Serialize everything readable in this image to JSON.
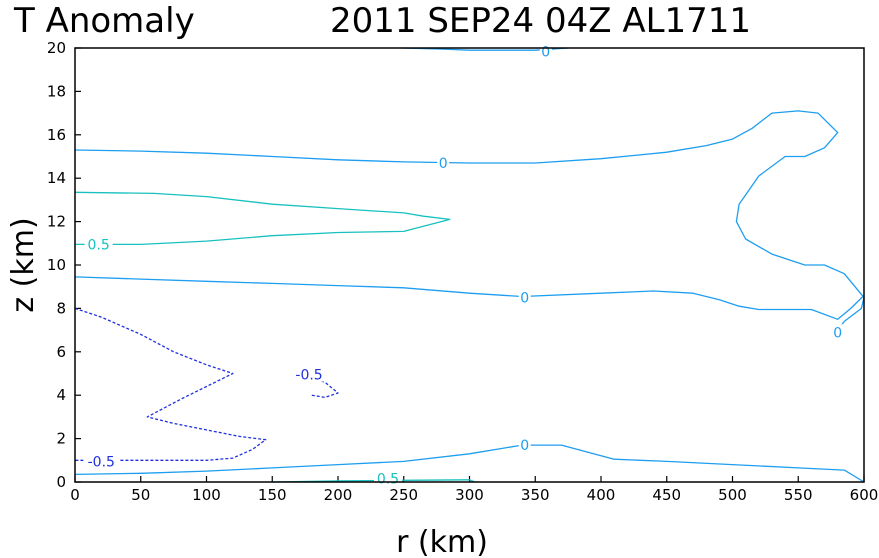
{
  "title_left": "T Anomaly",
  "title_right": "2011 SEP24 04Z  AL1711",
  "chart_data": {
    "type": "contour",
    "xlabel": "r (km)",
    "ylabel": "z (km)",
    "xlim": [
      0,
      600
    ],
    "ylim": [
      0,
      20
    ],
    "xticks": [
      0,
      50,
      100,
      150,
      200,
      250,
      300,
      350,
      400,
      450,
      500,
      550,
      600
    ],
    "yticks": [
      0,
      2,
      4,
      6,
      8,
      10,
      12,
      14,
      16,
      18,
      20
    ],
    "colors": {
      "zero": "#1e9ef0",
      "positive": "#18c0c0",
      "negative": "#2030e0"
    },
    "contours": [
      {
        "level": "0",
        "style": "solid",
        "color": "zero",
        "points": [
          [
            248,
            20
          ],
          [
            280,
            19.95
          ],
          [
            300,
            19.9
          ],
          [
            350,
            19.9
          ],
          [
            375,
            20
          ]
        ],
        "labels": [
          {
            "text": "0",
            "at": [
              358,
              19.85
            ]
          }
        ]
      },
      {
        "level": "0",
        "style": "solid",
        "color": "zero",
        "points": [
          [
            0,
            15.3
          ],
          [
            50,
            15.25
          ],
          [
            100,
            15.15
          ],
          [
            150,
            15
          ],
          [
            200,
            14.85
          ],
          [
            250,
            14.75
          ],
          [
            300,
            14.7
          ],
          [
            350,
            14.7
          ],
          [
            400,
            14.9
          ],
          [
            450,
            15.2
          ],
          [
            480,
            15.5
          ],
          [
            500,
            15.8
          ],
          [
            515,
            16.3
          ],
          [
            530,
            17
          ],
          [
            550,
            17.1
          ],
          [
            565,
            17
          ],
          [
            580,
            16.1
          ],
          [
            570,
            15.4
          ],
          [
            555,
            15
          ],
          [
            540,
            15
          ],
          [
            520,
            14.1
          ],
          [
            505,
            12.8
          ],
          [
            503,
            12
          ],
          [
            510,
            11.2
          ],
          [
            530,
            10.5
          ],
          [
            555,
            10
          ],
          [
            570,
            10
          ],
          [
            585,
            9.6
          ],
          [
            600,
            8.5
          ],
          [
            598,
            8
          ],
          [
            585,
            7.4
          ],
          [
            580,
            7
          ]
        ],
        "labels": [
          {
            "text": "0",
            "at": [
              280,
              14.7
            ]
          },
          {
            "text": "0",
            "at": [
              580,
              6.9
            ]
          }
        ]
      },
      {
        "level": "0",
        "style": "solid",
        "color": "zero",
        "points": [
          [
            0,
            9.45
          ],
          [
            50,
            9.35
          ],
          [
            100,
            9.25
          ],
          [
            150,
            9.15
          ],
          [
            200,
            9.05
          ],
          [
            250,
            8.95
          ],
          [
            300,
            8.7
          ],
          [
            340,
            8.55
          ],
          [
            400,
            8.7
          ],
          [
            440,
            8.8
          ],
          [
            470,
            8.7
          ],
          [
            490,
            8.4
          ],
          [
            505,
            8.1
          ],
          [
            520,
            7.95
          ],
          [
            560,
            7.95
          ],
          [
            580,
            7.5
          ],
          [
            590,
            8
          ],
          [
            600,
            8.6
          ]
        ],
        "labels": [
          {
            "text": "0",
            "at": [
              342,
              8.5
            ]
          }
        ]
      },
      {
        "level": "0",
        "style": "solid",
        "color": "zero",
        "points": [
          [
            0,
            0.35
          ],
          [
            50,
            0.4
          ],
          [
            100,
            0.5
          ],
          [
            150,
            0.65
          ],
          [
            200,
            0.8
          ],
          [
            250,
            0.95
          ],
          [
            300,
            1.3
          ],
          [
            340,
            1.7
          ],
          [
            370,
            1.7
          ],
          [
            410,
            1.05
          ],
          [
            450,
            0.95
          ],
          [
            500,
            0.8
          ],
          [
            550,
            0.65
          ],
          [
            585,
            0.55
          ],
          [
            600,
            0
          ]
        ],
        "labels": [
          {
            "text": "0",
            "at": [
              342,
              1.7
            ]
          }
        ]
      },
      {
        "level": "0.5",
        "style": "solid",
        "color": "positive",
        "points": [
          [
            0,
            13.35
          ],
          [
            60,
            13.3
          ],
          [
            100,
            13.15
          ],
          [
            150,
            12.8
          ],
          [
            200,
            12.6
          ],
          [
            250,
            12.4
          ],
          [
            265,
            12.25
          ],
          [
            285,
            12.1
          ],
          [
            250,
            11.55
          ],
          [
            200,
            11.5
          ],
          [
            150,
            11.35
          ],
          [
            100,
            11.1
          ],
          [
            50,
            10.95
          ],
          [
            0,
            10.95
          ]
        ],
        "labels": [
          {
            "text": "0.5",
            "at": [
              18,
              10.95
            ]
          }
        ]
      },
      {
        "level": "0.5",
        "style": "solid",
        "color": "positive",
        "points": [
          [
            150,
            0
          ],
          [
            200,
            0.05
          ],
          [
            250,
            0.08
          ],
          [
            300,
            0.1
          ],
          [
            304,
            0
          ]
        ],
        "labels": [
          {
            "text": "0.5",
            "at": [
              238,
              0.15
            ]
          }
        ]
      },
      {
        "level": "-0.5",
        "style": "dashed",
        "color": "negative",
        "points": [
          [
            0,
            8
          ],
          [
            20,
            7.6
          ],
          [
            50,
            6.8
          ],
          [
            75,
            6
          ],
          [
            100,
            5.4
          ],
          [
            120,
            5
          ],
          [
            100,
            4.4
          ],
          [
            80,
            3.8
          ],
          [
            55,
            3
          ],
          [
            75,
            2.7
          ],
          [
            100,
            2.4
          ],
          [
            125,
            2.1
          ],
          [
            145,
            1.95
          ],
          [
            135,
            1.5
          ],
          [
            120,
            1.1
          ],
          [
            100,
            1
          ],
          [
            0,
            1
          ]
        ],
        "labels": [
          {
            "text": "-0.5",
            "at": [
              20,
              0.95
            ]
          }
        ]
      },
      {
        "level": "-0.5",
        "style": "dashed",
        "color": "negative",
        "points": [
          [
            180,
            4.8
          ],
          [
            190,
            4.6
          ],
          [
            200,
            4.1
          ],
          [
            190,
            3.9
          ],
          [
            180,
            4
          ]
        ],
        "labels": [
          {
            "text": "-0.5",
            "at": [
              178,
              4.95
            ]
          }
        ]
      }
    ]
  }
}
